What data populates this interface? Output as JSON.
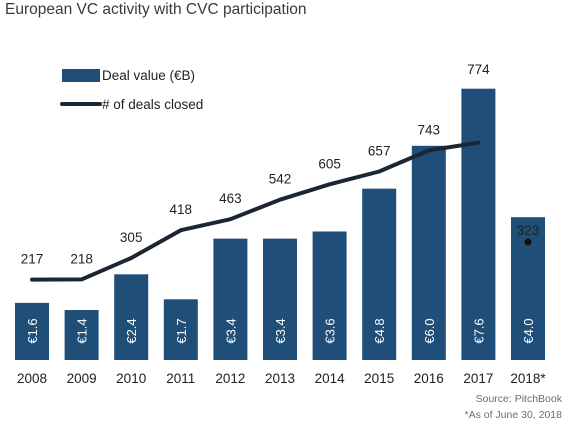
{
  "title": "European VC activity with CVC participation",
  "source": "Source: PitchBook",
  "footnote": "*As of June 30, 2018",
  "colors": {
    "bar": "#1f4e79",
    "line": "#1c2532",
    "bar_label": "#ffffff",
    "point": "#111111"
  },
  "chart_data": {
    "type": "bar",
    "categories": [
      "2008",
      "2009",
      "2010",
      "2011",
      "2012",
      "2013",
      "2014",
      "2015",
      "2016",
      "2017",
      "2018*"
    ],
    "bar_labels": [
      "€1.6",
      "€1.4",
      "€2.4",
      "€1.7",
      "€3.4",
      "€3.4",
      "€3.6",
      "€4.8",
      "€6.0",
      "€7.6",
      "€4.0"
    ],
    "count_labels": [
      "217",
      "218",
      "305",
      "418",
      "463",
      "542",
      "605",
      "657",
      "743",
      "774",
      "323"
    ],
    "series": [
      {
        "name": "Deal value (€B)",
        "type": "bar",
        "values": [
          1.6,
          1.4,
          2.4,
          1.7,
          3.4,
          3.4,
          3.6,
          4.8,
          6.0,
          7.6,
          4.0
        ]
      },
      {
        "name": "# of deals closed",
        "type": "line",
        "values": [
          217,
          218,
          305,
          418,
          463,
          542,
          605,
          657,
          743,
          774,
          null
        ],
        "extra_point": {
          "category": "2018*",
          "value": 323
        }
      }
    ],
    "legend_position": "top-left",
    "grid": false
  }
}
